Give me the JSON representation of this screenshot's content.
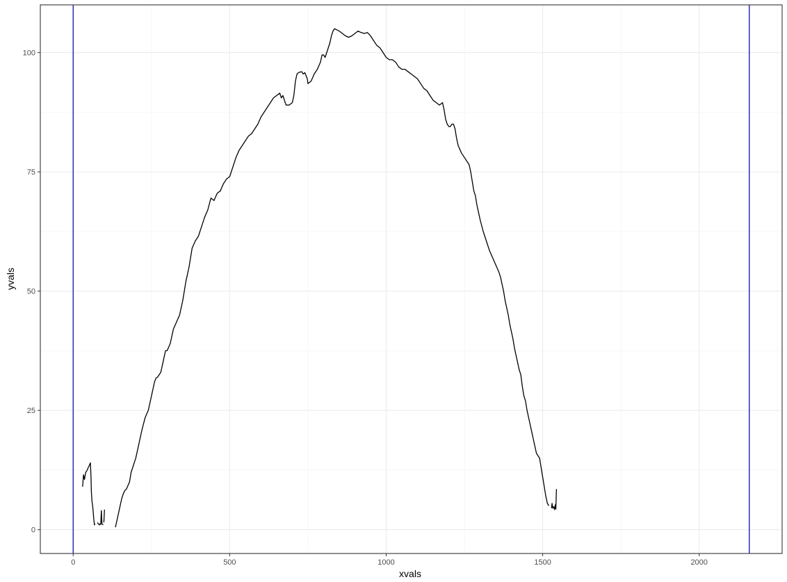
{
  "chart_data": {
    "type": "line",
    "title": "",
    "xlabel": "xvals",
    "ylabel": "yvals",
    "xlim": [
      -105,
      2265
    ],
    "ylim": [
      -5,
      110
    ],
    "x_ticks": [
      0,
      500,
      1000,
      1500,
      2000
    ],
    "y_ticks": [
      0,
      25,
      50,
      75,
      100
    ],
    "grid": true,
    "legend": "none",
    "colors": {
      "line": "#000000",
      "vline": "#1f1fb4",
      "grid_major": "#ebebeb",
      "grid_minor": "#f5f5f5",
      "panel_border": "#333333"
    },
    "vlines": [
      0,
      2160
    ],
    "series": [
      {
        "segments": [
          [
            [
              30,
              9
            ],
            [
              33,
              11.5
            ],
            [
              36,
              10.5
            ],
            [
              40,
              12
            ],
            [
              45,
              12.5
            ],
            [
              48,
              13
            ],
            [
              52,
              13.5
            ],
            [
              55,
              14
            ],
            [
              57,
              11
            ],
            [
              58,
              8
            ],
            [
              60,
              6
            ],
            [
              63,
              4.5
            ],
            [
              66,
              2
            ],
            [
              68,
              1
            ],
            [
              70,
              1.2
            ]
          ],
          [
            [
              78,
              1.5
            ],
            [
              80,
              1.2
            ],
            [
              84,
              1
            ],
            [
              86,
              1.3
            ]
          ],
          [
            [
              88,
              1
            ],
            [
              90,
              4
            ],
            [
              92,
              1.2
            ],
            [
              96,
              1
            ]
          ],
          [
            [
              98,
              1.5
            ],
            [
              100,
              4.2
            ]
          ],
          [
            [
              135,
              0.5
            ],
            [
              140,
              2
            ],
            [
              145,
              3.5
            ],
            [
              150,
              5
            ],
            [
              155,
              6.5
            ],
            [
              160,
              7.5
            ],
            [
              165,
              8.2
            ],
            [
              170,
              8.5
            ],
            [
              180,
              10
            ],
            [
              185,
              12
            ],
            [
              190,
              13
            ],
            [
              200,
              15
            ],
            [
              210,
              18
            ],
            [
              220,
              21
            ],
            [
              230,
              23.5
            ],
            [
              240,
              25
            ],
            [
              250,
              28
            ],
            [
              260,
              31
            ],
            [
              265,
              31.8
            ],
            [
              270,
              32
            ],
            [
              280,
              33
            ],
            [
              290,
              36
            ],
            [
              295,
              37.5
            ],
            [
              300,
              37.5
            ],
            [
              310,
              39
            ],
            [
              320,
              42
            ],
            [
              330,
              43.5
            ],
            [
              340,
              45
            ],
            [
              350,
              48
            ],
            [
              360,
              52
            ],
            [
              370,
              55
            ],
            [
              380,
              59
            ],
            [
              390,
              60.5
            ],
            [
              400,
              61.5
            ],
            [
              410,
              63.5
            ],
            [
              420,
              65.5
            ],
            [
              430,
              67
            ],
            [
              440,
              69.5
            ],
            [
              450,
              69
            ],
            [
              460,
              70.5
            ],
            [
              470,
              71
            ],
            [
              480,
              72.5
            ],
            [
              490,
              73.5
            ],
            [
              500,
              74
            ],
            [
              510,
              76
            ],
            [
              520,
              78
            ],
            [
              530,
              79.5
            ],
            [
              540,
              80.5
            ],
            [
              550,
              81.5
            ],
            [
              560,
              82.5
            ],
            [
              570,
              83
            ],
            [
              580,
              84
            ],
            [
              590,
              85
            ],
            [
              600,
              86.5
            ],
            [
              610,
              87.5
            ],
            [
              620,
              88.5
            ],
            [
              630,
              89.5
            ],
            [
              640,
              90.5
            ],
            [
              650,
              91
            ],
            [
              660,
              91.5
            ],
            [
              665,
              90.5
            ],
            [
              670,
              91
            ],
            [
              680,
              89
            ],
            [
              690,
              89
            ],
            [
              700,
              89.5
            ],
            [
              705,
              91
            ],
            [
              710,
              94
            ],
            [
              715,
              95.5
            ],
            [
              720,
              95.8
            ],
            [
              730,
              96
            ],
            [
              735,
              95.5
            ],
            [
              740,
              95.8
            ],
            [
              748,
              94.5
            ],
            [
              750,
              93.5
            ],
            [
              760,
              94
            ],
            [
              770,
              95.5
            ],
            [
              780,
              96.5
            ],
            [
              790,
              98
            ],
            [
              795,
              99.5
            ],
            [
              800,
              99.5
            ],
            [
              805,
              99
            ],
            [
              810,
              100
            ],
            [
              815,
              101
            ],
            [
              820,
              102
            ],
            [
              825,
              103.5
            ],
            [
              830,
              104.5
            ],
            [
              835,
              105
            ],
            [
              850,
              104.5
            ],
            [
              860,
              104
            ],
            [
              870,
              103.5
            ],
            [
              880,
              103.2
            ],
            [
              890,
              103.5
            ],
            [
              900,
              104
            ],
            [
              910,
              104.5
            ],
            [
              920,
              104.2
            ],
            [
              930,
              104
            ],
            [
              940,
              104.2
            ],
            [
              950,
              103.5
            ],
            [
              960,
              102.5
            ],
            [
              970,
              101.5
            ],
            [
              980,
              101
            ],
            [
              990,
              100
            ],
            [
              1000,
              99
            ],
            [
              1010,
              98.5
            ],
            [
              1020,
              98.5
            ],
            [
              1030,
              98
            ],
            [
              1040,
              97
            ],
            [
              1050,
              96.5
            ],
            [
              1060,
              96.5
            ],
            [
              1070,
              96
            ],
            [
              1080,
              95.5
            ],
            [
              1090,
              95
            ],
            [
              1100,
              94.5
            ],
            [
              1110,
              93.5
            ],
            [
              1120,
              92.5
            ],
            [
              1130,
              92
            ],
            [
              1140,
              91
            ],
            [
              1150,
              90
            ],
            [
              1160,
              89.5
            ],
            [
              1170,
              89
            ],
            [
              1180,
              89.5
            ],
            [
              1185,
              88
            ],
            [
              1190,
              86
            ],
            [
              1195,
              85
            ],
            [
              1200,
              84.5
            ],
            [
              1205,
              84.5
            ],
            [
              1210,
              85
            ],
            [
              1215,
              85
            ],
            [
              1220,
              84
            ],
            [
              1225,
              82
            ],
            [
              1230,
              80.5
            ],
            [
              1240,
              79
            ],
            [
              1250,
              78
            ],
            [
              1260,
              77
            ],
            [
              1265,
              76.5
            ],
            [
              1270,
              75
            ],
            [
              1275,
              73
            ],
            [
              1280,
              71
            ],
            [
              1285,
              70
            ],
            [
              1290,
              68
            ],
            [
              1295,
              66.5
            ],
            [
              1300,
              65
            ],
            [
              1310,
              62.5
            ],
            [
              1320,
              60.5
            ],
            [
              1330,
              58.5
            ],
            [
              1340,
              57
            ],
            [
              1350,
              55.5
            ],
            [
              1360,
              54
            ],
            [
              1365,
              53
            ],
            [
              1370,
              51.5
            ],
            [
              1375,
              50
            ],
            [
              1380,
              48
            ],
            [
              1385,
              46.5
            ],
            [
              1390,
              45
            ],
            [
              1395,
              43
            ],
            [
              1400,
              41.5
            ],
            [
              1405,
              40
            ],
            [
              1410,
              38
            ],
            [
              1415,
              36.5
            ],
            [
              1420,
              35
            ],
            [
              1425,
              33.5
            ],
            [
              1430,
              32.5
            ],
            [
              1435,
              30
            ],
            [
              1440,
              28
            ],
            [
              1445,
              27
            ],
            [
              1450,
              25
            ],
            [
              1455,
              23.5
            ],
            [
              1460,
              22
            ],
            [
              1465,
              20.5
            ],
            [
              1470,
              19
            ],
            [
              1475,
              17.5
            ],
            [
              1480,
              16
            ],
            [
              1485,
              15.5
            ],
            [
              1490,
              15
            ],
            [
              1495,
              13
            ],
            [
              1500,
              11
            ],
            [
              1505,
              9
            ],
            [
              1510,
              7
            ],
            [
              1515,
              5.5
            ],
            [
              1520,
              5
            ]
          ],
          [
            [
              1528,
              4.5
            ],
            [
              1530,
              5.5
            ],
            [
              1532,
              4.5
            ],
            [
              1535,
              4.8
            ],
            [
              1538,
              4.2
            ],
            [
              1540,
              5.2
            ],
            [
              1542,
              4.3
            ],
            [
              1544,
              8.5
            ]
          ]
        ]
      }
    ]
  }
}
